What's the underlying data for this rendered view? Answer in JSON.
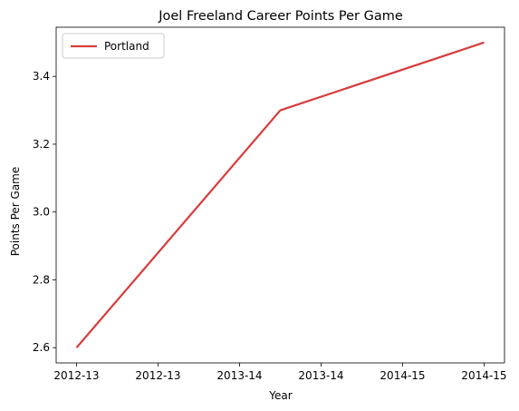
{
  "chart_data": {
    "type": "line",
    "title": "Joel Freeland Career Points Per Game",
    "xlabel": "Year",
    "ylabel": "Points Per Game",
    "x_tick_labels": [
      "2012-13",
      "2012-13",
      "2013-14",
      "2013-14",
      "2014-15",
      "2014-15"
    ],
    "y_ticks": [
      2.6,
      2.8,
      3.0,
      3.2,
      3.4
    ],
    "ylim": [
      2.555,
      3.545
    ],
    "x_range": [
      0,
      2
    ],
    "categories": [
      "2012-13",
      "2013-14",
      "2014-15"
    ],
    "series": [
      {
        "name": "Portland",
        "x": [
          0,
          1,
          2
        ],
        "values": [
          2.6,
          3.3,
          3.5
        ],
        "color": "#d93b3b"
      }
    ],
    "legend": "top-left",
    "grid": false
  }
}
